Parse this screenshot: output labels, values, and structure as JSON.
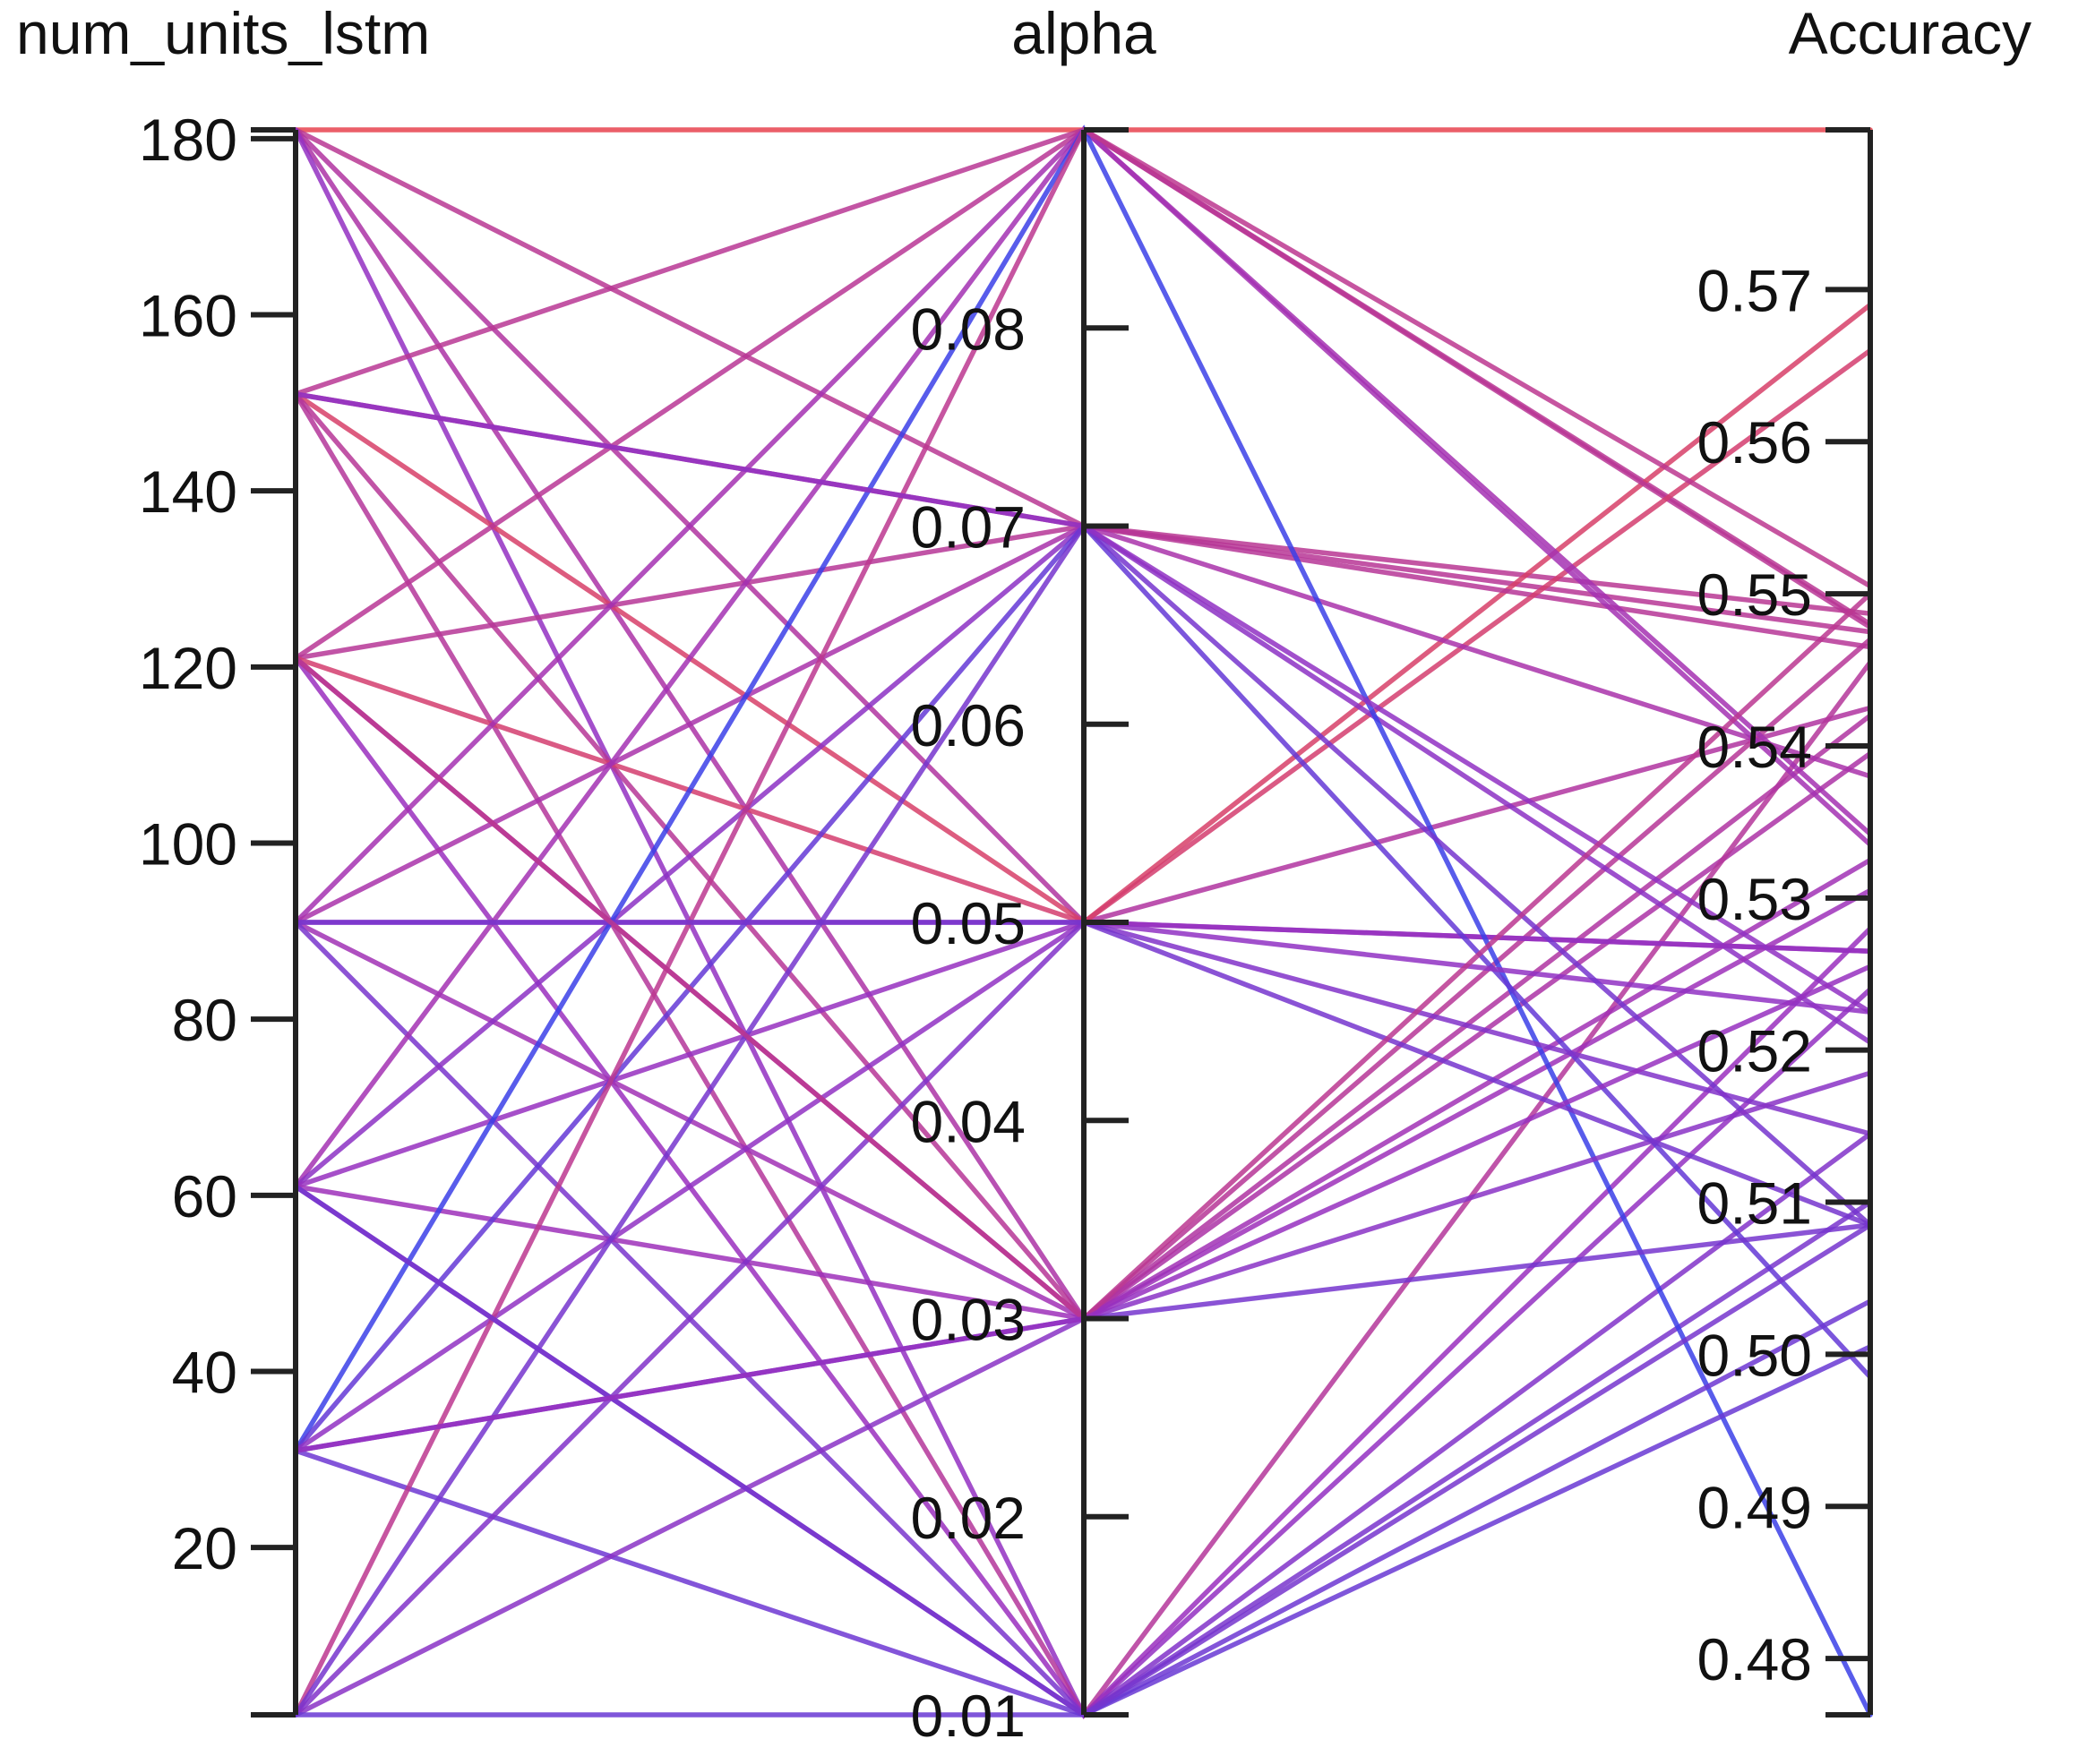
{
  "chart_data": {
    "type": "parallel_coordinates",
    "axes": [
      {
        "name": "num_units_lstm",
        "range": [
          1,
          181
        ],
        "ticks": [
          20,
          40,
          60,
          80,
          100,
          120,
          140,
          160,
          180
        ]
      },
      {
        "name": "alpha",
        "range": [
          0.01,
          0.09
        ],
        "ticks": [
          0.01,
          0.02,
          0.03,
          0.04,
          0.05,
          0.06,
          0.07,
          0.08
        ]
      },
      {
        "name": "Accuracy",
        "range": [
          0.4763,
          0.5805
        ],
        "ticks": [
          0.48,
          0.49,
          0.5,
          0.51,
          0.52,
          0.53,
          0.54,
          0.55,
          0.56,
          0.57
        ]
      }
    ],
    "color_scale": {
      "low": "#3b3fe8",
      "mid": "#9b2fbe",
      "high": "#e8434f"
    },
    "lines": [
      {
        "values": [
          181,
          0.09,
          0.5805
        ]
      },
      {
        "values": [
          181,
          0.07,
          0.5487
        ]
      },
      {
        "values": [
          181,
          0.05,
          0.5425
        ]
      },
      {
        "values": [
          181,
          0.03,
          0.5395
        ]
      },
      {
        "values": [
          181,
          0.01,
          0.524
        ]
      },
      {
        "values": [
          151,
          0.09,
          0.548
        ]
      },
      {
        "values": [
          151,
          0.07,
          0.5475
        ]
      },
      {
        "values": [
          151,
          0.05,
          0.569
        ]
      },
      {
        "values": [
          151,
          0.03,
          0.547
        ]
      },
      {
        "values": [
          151,
          0.01,
          0.5455
        ]
      },
      {
        "values": [
          121,
          0.09,
          0.5478
        ]
      },
      {
        "values": [
          121,
          0.07,
          0.5465
        ]
      },
      {
        "values": [
          121,
          0.05,
          0.566
        ]
      },
      {
        "values": [
          121,
          0.03,
          0.542
        ]
      },
      {
        "values": [
          121,
          0.01,
          0.528
        ]
      },
      {
        "values": [
          91,
          0.09,
          0.5342
        ]
      },
      {
        "values": [
          91,
          0.07,
          0.538
        ]
      },
      {
        "values": [
          91,
          0.05,
          0.5265
        ]
      },
      {
        "values": [
          91,
          0.03,
          0.5325
        ]
      },
      {
        "values": [
          91,
          0.01,
          0.51
        ]
      },
      {
        "values": [
          61,
          0.09,
          0.5335
        ]
      },
      {
        "values": [
          61,
          0.07,
          0.5205
        ]
      },
      {
        "values": [
          61,
          0.05,
          0.5265
        ]
      },
      {
        "values": [
          61,
          0.03,
          0.5305
        ]
      },
      {
        "values": [
          61,
          0.01,
          0.5145
        ]
      },
      {
        "values": [
          31,
          0.09,
          0.4763
        ]
      },
      {
        "values": [
          31,
          0.07,
          0.4985
        ]
      },
      {
        "values": [
          31,
          0.05,
          0.5225
        ]
      },
      {
        "values": [
          31,
          0.03,
          0.5085
        ]
      },
      {
        "values": [
          31,
          0.01,
          0.5035
        ]
      },
      {
        "values": [
          1,
          0.09,
          0.5505
        ]
      },
      {
        "values": [
          1,
          0.07,
          0.5085
        ]
      },
      {
        "values": [
          1,
          0.05,
          0.5145
        ]
      },
      {
        "values": [
          1,
          0.03,
          0.5185
        ]
      },
      {
        "values": [
          1,
          0.01,
          0.5005
        ]
      },
      {
        "values": [
          151,
          0.07,
          0.5225
        ]
      },
      {
        "values": [
          91,
          0.05,
          0.5085
        ]
      },
      {
        "values": [
          121,
          0.03,
          0.55
        ]
      },
      {
        "values": [
          61,
          0.01,
          0.5085
        ]
      },
      {
        "values": [
          31,
          0.03,
          0.5255
        ]
      }
    ]
  }
}
